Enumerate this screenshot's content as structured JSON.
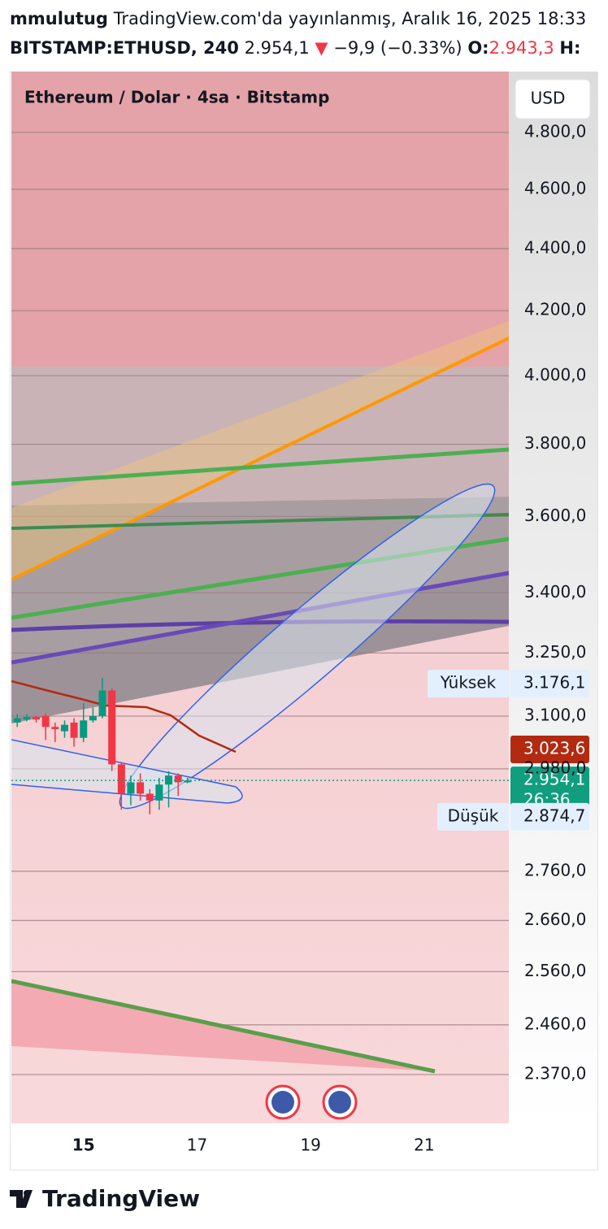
{
  "header": {
    "author": "mmulutug",
    "published": "TradingView.com'da yayınlanmış, Aralık 16, 2025 18:33",
    "symbol": "BITSTAMP:ETHUSD, 240",
    "last": "2.954,1",
    "arrow": "▼",
    "change": "−9,9 (−0.33%)",
    "open_label": "O:",
    "open": "2.943,3",
    "high_label": "H:"
  },
  "chart_data": {
    "type": "candlestick",
    "title": "Ethereum / Dolar · 4sa · Bitstamp",
    "currency": "USD",
    "log_scale": true,
    "grid": true,
    "up_color": "#089981",
    "down_color": "#f23645",
    "x": [
      13.833,
      14.0,
      14.167,
      14.333,
      14.5,
      14.667,
      14.833,
      15.0,
      15.167,
      15.333,
      15.5,
      15.667,
      15.833,
      16.0,
      16.167,
      16.333,
      16.5,
      16.667,
      16.833
    ],
    "open": [
      3085,
      3092,
      3098,
      3100,
      3075,
      3065,
      3085,
      3050,
      3090,
      3100,
      3160,
      2990,
      2925,
      2950,
      2925,
      2910,
      2945,
      2965,
      2950
    ],
    "high": [
      3105,
      3105,
      3100,
      3105,
      3085,
      3090,
      3095,
      3130,
      3120,
      3190,
      3165,
      2995,
      2965,
      2970,
      2935,
      2960,
      2975,
      2970,
      2960
    ],
    "low": [
      3075,
      3088,
      3085,
      3045,
      3040,
      3050,
      3030,
      3040,
      3085,
      3095,
      2975,
      2890,
      2900,
      2910,
      2880,
      2890,
      2895,
      2920,
      2948
    ],
    "close": [
      3095,
      3098,
      3092,
      3075,
      3070,
      3080,
      3050,
      3090,
      3100,
      3160,
      2990,
      2925,
      2950,
      2925,
      2910,
      2945,
      2965,
      2950,
      2954.1
    ],
    "xlim": [
      13.73,
      22.49
    ],
    "xticks": [
      15,
      17,
      19,
      21
    ],
    "ylim": [
      2285,
      5024
    ],
    "yticks": [
      {
        "value": 2370,
        "label": "2.370,0"
      },
      {
        "value": 2460,
        "label": "2.460,0"
      },
      {
        "value": 2560,
        "label": "2.560,0"
      },
      {
        "value": 2660,
        "label": "2.660,0"
      },
      {
        "value": 2760,
        "label": "2.760,0"
      },
      {
        "value": 2980,
        "label": "2.980,0"
      },
      {
        "value": 3100,
        "label": "3.100,0"
      },
      {
        "value": 3250,
        "label": "3.250,0"
      },
      {
        "value": 3400,
        "label": "3.400,0"
      },
      {
        "value": 3600,
        "label": "3.600,0"
      },
      {
        "value": 3800,
        "label": "3.800,0"
      },
      {
        "value": 4000,
        "label": "4.000,0"
      },
      {
        "value": 4200,
        "label": "4.200,0"
      },
      {
        "value": 4400,
        "label": "4.400,0"
      },
      {
        "value": 4600,
        "label": "4.600,0"
      },
      {
        "value": 4800,
        "label": "4.800,0"
      }
    ],
    "markers": [
      {
        "name": "Yüksek",
        "value": 3176.1,
        "label": "3.176,1"
      },
      {
        "value": 3023.6,
        "label": "3.023,6",
        "color": "#b22a10"
      },
      {
        "value": 2954.1,
        "label": "2.954,1",
        "countdown": "26:36",
        "color": "#109e7e"
      },
      {
        "name": "Düşük",
        "value": 2874.7,
        "label": "2.874,7"
      }
    ],
    "brand": "TradingView"
  }
}
